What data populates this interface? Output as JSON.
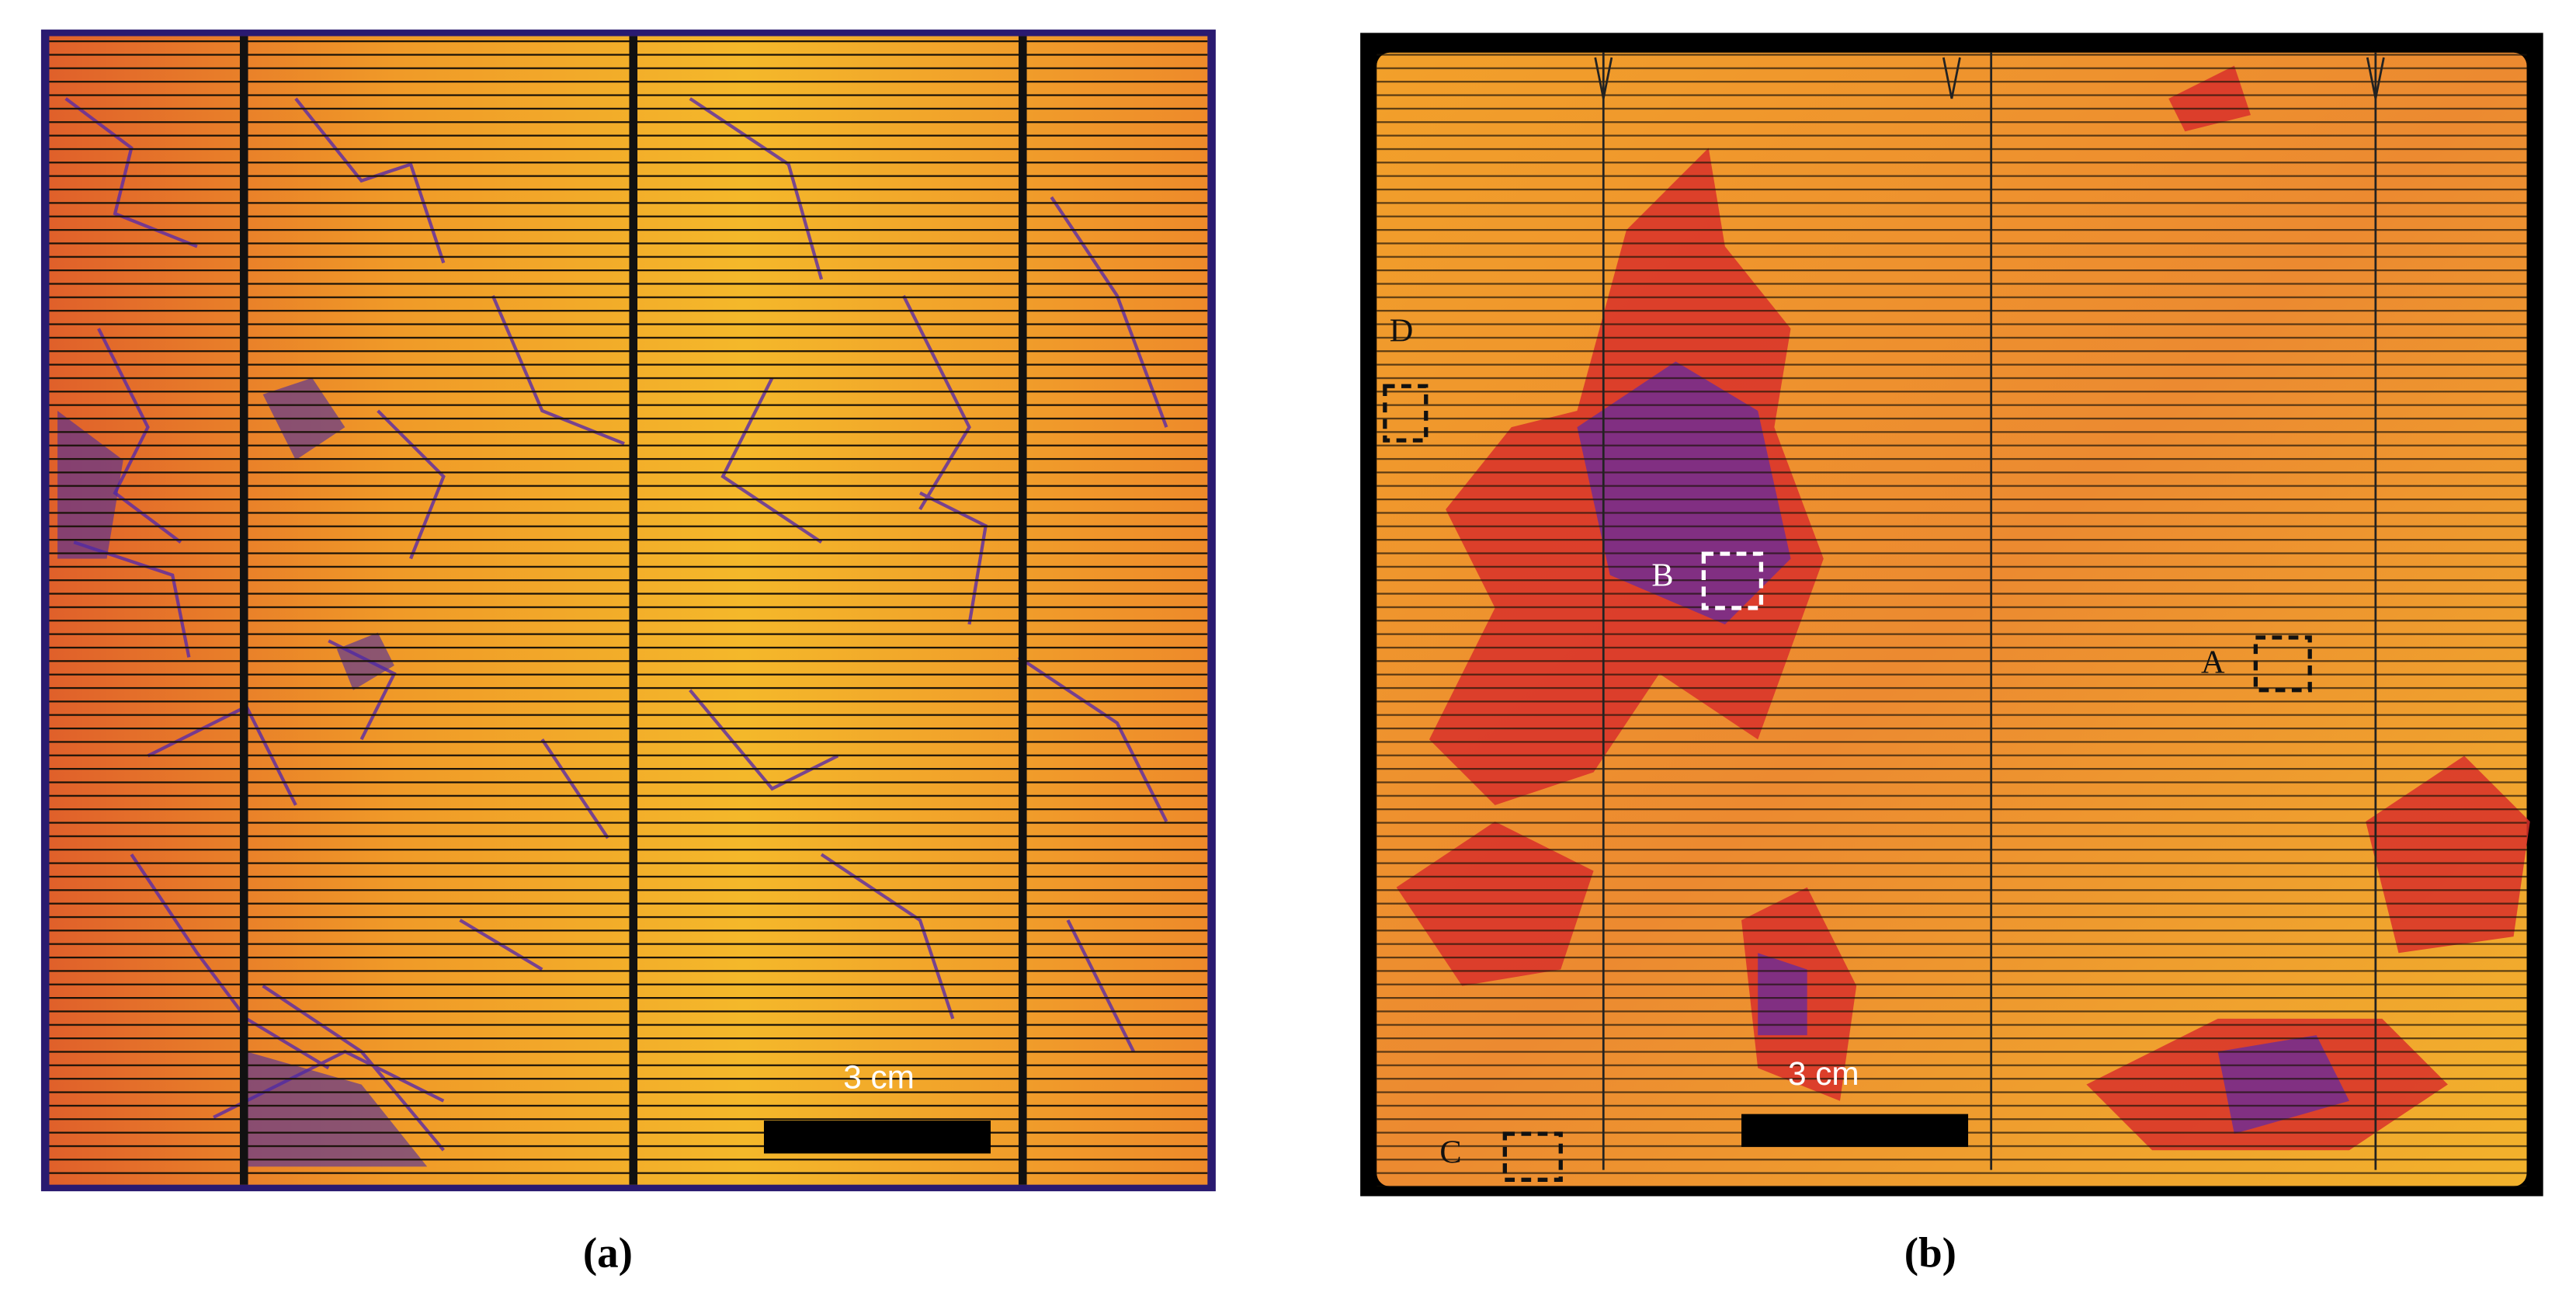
{
  "panels": [
    {
      "label": "(a)",
      "scale_bar": "3 cm"
    },
    {
      "label": "(b)",
      "scale_bar": "3 cm",
      "regions": [
        "A",
        "B",
        "C",
        "D"
      ]
    }
  ]
}
